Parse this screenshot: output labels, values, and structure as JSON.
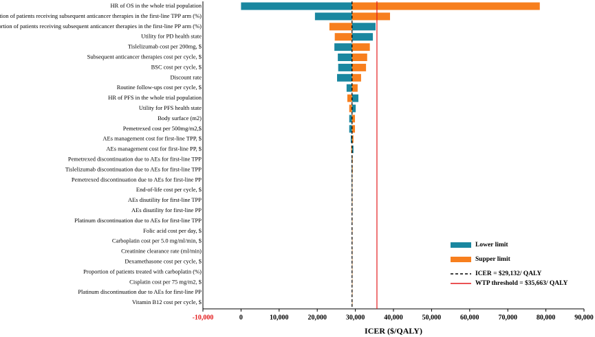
{
  "chart_data": {
    "type": "tornado",
    "x_label": "ICER ($/QALY)",
    "categories": [
      "HR of OS in the whole trial population",
      "Proportion of patients receiving subsequent anticancer therapies in the first-line TPP arm (%)",
      "Proportion of patients receiving subsequent anticancer therapies in the first-line PP arm (%)",
      "Utility for PD health state",
      "Tislelizumab cost per 200mg, $",
      "Subsequent anticancer therapies cost per cycle, $",
      "BSC cost per cycle, $",
      "Discount rate",
      "Routine follow-ups cost per cycle, $",
      "HR of PFS in the whole trial population",
      "Utility for PFS health state",
      "Body surface (m2)",
      "Pemetrexed cost per 500mg/m2,$",
      "AEs management cost for first-line TPP, $",
      "AEs management cost for first-line PP, $",
      "Pemetrexed discontinuation due to AEs for first-line TPP",
      "Tislelizumab discontinuation due to AEs for first-line TPP",
      "Pemetrexed discontinuation due to AEs for first-line PP",
      "End-of-life cost per cycle, $",
      "AEs disutility for first-line TPP",
      "AEs disutility for first-line PP",
      "Platinum discontinuation due to AEs for first-line TPP",
      "Folic acid cost per day, $",
      "Carboplatin cost per 5.0 mg/ml/min, $",
      "Creatinine clearance rate (ml/min)",
      "Dexamethasone cost per cycle, $",
      "Proportion of patients treated with carboplatin (%)",
      "Cisplatin cost per 75 mg/m2, $",
      "Platinum discontinuation due to AEs for first-line PP",
      "Vitamin B12 cost per cycle, $"
    ],
    "series": [
      {
        "name": "Lower limit",
        "color": "#1a87a0",
        "values": [
          0,
          19400,
          35300,
          34600,
          24500,
          25400,
          25500,
          25200,
          27700,
          30800,
          30100,
          28400,
          28400,
          28800,
          29500,
          29000,
          29000,
          29050,
          29060,
          29080,
          29180,
          29080,
          29100,
          29110,
          29120,
          29120,
          29125,
          29125,
          29130,
          29130
        ]
      },
      {
        "name": "Supper limit",
        "color": "#f77f1e",
        "values": [
          78400,
          39100,
          23200,
          24600,
          33800,
          33100,
          32800,
          31500,
          30600,
          27900,
          28400,
          29900,
          29900,
          29500,
          28900,
          29300,
          29300,
          29220,
          29210,
          29190,
          29090,
          29190,
          29160,
          29150,
          29145,
          29145,
          29140,
          29140,
          29135,
          29135
        ]
      }
    ],
    "icer": {
      "value": 29132,
      "label": "ICER = $29,132/ QALY",
      "color": "#000000"
    },
    "wtp": {
      "value": 35663,
      "label": "WTP threshold = $35,663/ QALY",
      "color": "#e31a1c"
    },
    "xlim": [
      -10000,
      90000
    ],
    "xticks": [
      {
        "value": -10000,
        "label": "-10,000"
      },
      0,
      {
        "value": 10000,
        "label": "10,000"
      },
      {
        "value": 20000,
        "label": "20,000"
      },
      {
        "value": 30000,
        "label": "30,000"
      },
      {
        "value": 40000,
        "label": "40,000"
      },
      {
        "value": 50000,
        "label": "50,000"
      },
      {
        "value": 60000,
        "label": "60,000"
      },
      {
        "value": 70000,
        "label": "70,000"
      },
      {
        "value": 80000,
        "label": "80,000"
      },
      {
        "value": 90000,
        "label": "90,000"
      }
    ],
    "xtick_colors": [
      "#e31a1c",
      "#000000",
      "#000000",
      "#000000",
      "#000000",
      "#000000",
      "#000000",
      "#000000",
      "#000000",
      "#000000",
      "#000000"
    ],
    "legend": "lower right"
  }
}
